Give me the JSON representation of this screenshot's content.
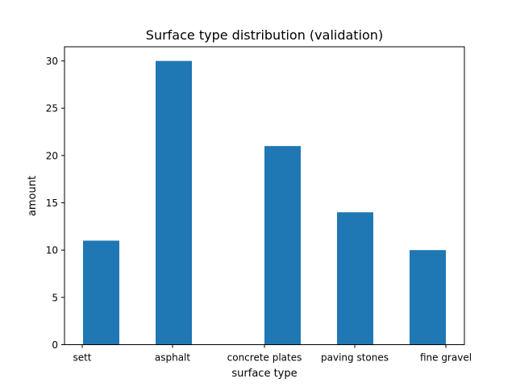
{
  "chart_data": {
    "type": "bar",
    "title": "Surface type distribution (validation)",
    "xlabel": "surface type",
    "ylabel": "amount",
    "bars": [
      {
        "label": "sett",
        "value": 11
      },
      {
        "label": "asphalt",
        "value": 30
      },
      {
        "label": "concrete plates",
        "value": 21
      },
      {
        "label": "paving stones",
        "value": 14
      },
      {
        "label": "fine gravel",
        "value": 10
      }
    ],
    "yticks": [
      0,
      5,
      10,
      15,
      20,
      25,
      30
    ],
    "ylim": [
      0,
      31.5
    ],
    "grid": false,
    "bar_color": "#1f77b4"
  }
}
